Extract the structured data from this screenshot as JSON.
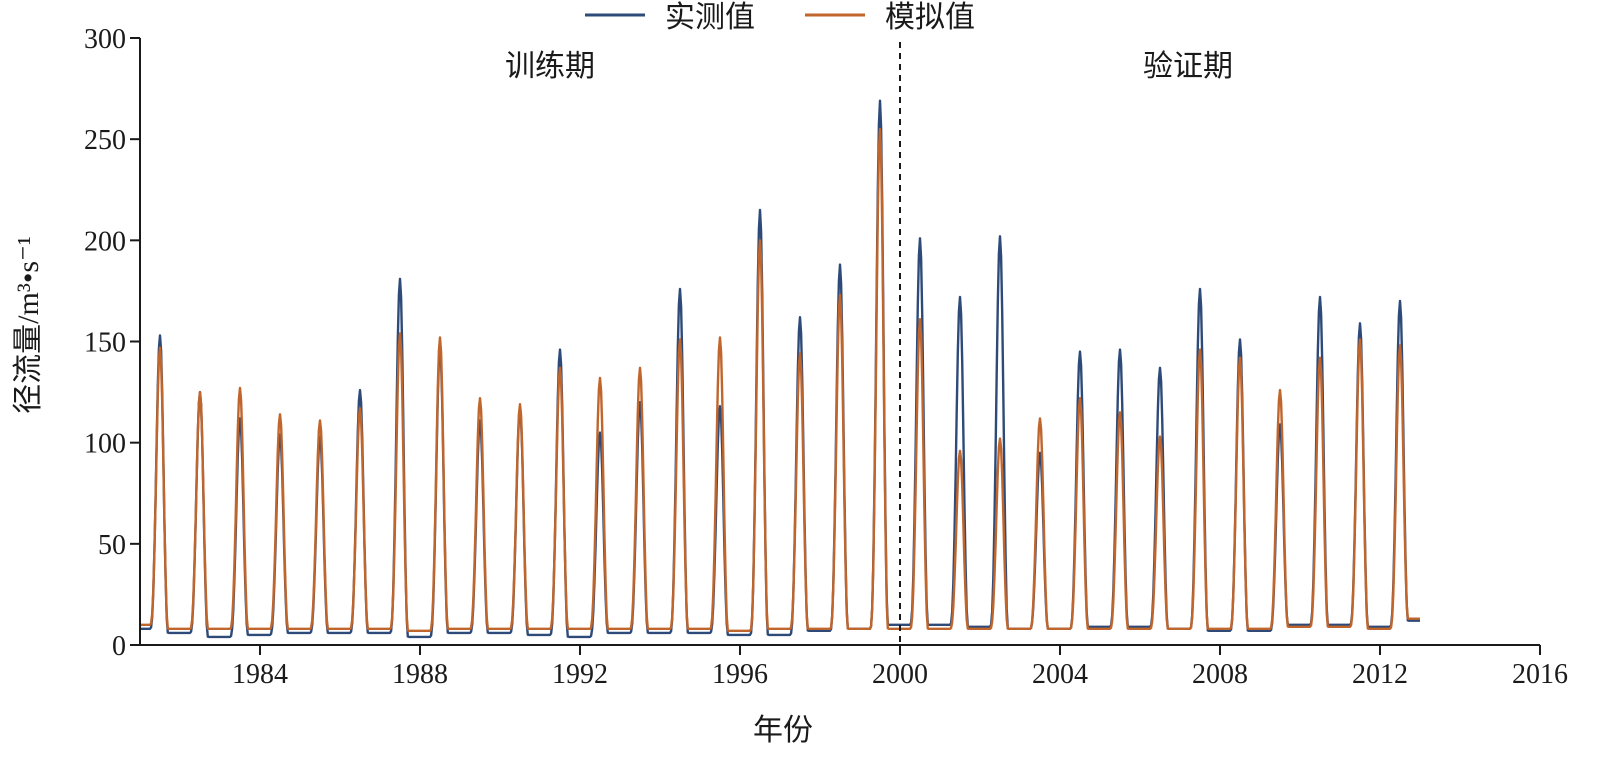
{
  "chart_data": {
    "type": "line",
    "xlabel": "年份",
    "ylabel": "径流量/m³•s⁻¹",
    "xlim": [
      1981.0,
      2016.0
    ],
    "ylim": [
      0,
      300
    ],
    "x_ticks": [
      "1984",
      "1988",
      "1992",
      "1996",
      "2000",
      "2004",
      "2008",
      "2012",
      "2016"
    ],
    "y_ticks": [
      "0",
      "50",
      "100",
      "150",
      "200",
      "250",
      "300"
    ],
    "grid": false,
    "legend_position": "top-center",
    "split_year": 2000.0,
    "periods": {
      "train_label": "训练期",
      "valid_label": "验证期"
    },
    "series": [
      {
        "name": "实测值",
        "color": "#2e4a78",
        "peaks": [
          [
            1981.5,
            153
          ],
          [
            1982.5,
            125
          ],
          [
            1983.5,
            112
          ],
          [
            1984.5,
            104
          ],
          [
            1985.5,
            103
          ],
          [
            1986.5,
            126
          ],
          [
            1987.5,
            181
          ],
          [
            1988.5,
            147
          ],
          [
            1989.5,
            111
          ],
          [
            1990.5,
            117
          ],
          [
            1991.5,
            146
          ],
          [
            1992.5,
            105
          ],
          [
            1993.5,
            120
          ],
          [
            1994.5,
            176
          ],
          [
            1995.5,
            118
          ],
          [
            1996.5,
            215
          ],
          [
            1997.5,
            162
          ],
          [
            1998.5,
            188
          ],
          [
            1999.5,
            269
          ],
          [
            2000.5,
            201
          ],
          [
            2001.5,
            172
          ],
          [
            2002.5,
            202
          ],
          [
            2003.5,
            95
          ],
          [
            2004.5,
            145
          ],
          [
            2005.5,
            146
          ],
          [
            2006.5,
            137
          ],
          [
            2007.5,
            176
          ],
          [
            2008.5,
            151
          ],
          [
            2009.5,
            109
          ],
          [
            2010.5,
            172
          ],
          [
            2011.5,
            159
          ],
          [
            2012.5,
            170
          ]
        ],
        "baselines": [
          8,
          6,
          4,
          5,
          6,
          6,
          6,
          4,
          6,
          6,
          5,
          4,
          6,
          6,
          6,
          5,
          5,
          7,
          8,
          10,
          10,
          9,
          8,
          8,
          9,
          9,
          8,
          7,
          7,
          10,
          10,
          9,
          12
        ]
      },
      {
        "name": "模拟值",
        "color": "#c0652b",
        "peaks": [
          [
            1981.5,
            147
          ],
          [
            1982.5,
            125
          ],
          [
            1983.5,
            127
          ],
          [
            1984.5,
            114
          ],
          [
            1985.5,
            111
          ],
          [
            1986.5,
            117
          ],
          [
            1987.5,
            154
          ],
          [
            1988.5,
            152
          ],
          [
            1989.5,
            122
          ],
          [
            1990.5,
            119
          ],
          [
            1991.5,
            137
          ],
          [
            1992.5,
            132
          ],
          [
            1993.5,
            137
          ],
          [
            1994.5,
            151
          ],
          [
            1995.5,
            152
          ],
          [
            1996.5,
            200
          ],
          [
            1997.5,
            144
          ],
          [
            1998.5,
            173
          ],
          [
            1999.5,
            255
          ],
          [
            2000.5,
            161
          ],
          [
            2001.5,
            96
          ],
          [
            2002.5,
            102
          ],
          [
            2003.5,
            112
          ],
          [
            2004.5,
            122
          ],
          [
            2005.5,
            115
          ],
          [
            2006.5,
            103
          ],
          [
            2007.5,
            146
          ],
          [
            2008.5,
            142
          ],
          [
            2009.5,
            126
          ],
          [
            2010.5,
            142
          ],
          [
            2011.5,
            151
          ],
          [
            2012.5,
            148
          ]
        ],
        "baselines": [
          10,
          8,
          8,
          8,
          8,
          8,
          8,
          7,
          8,
          8,
          8,
          8,
          8,
          8,
          8,
          7,
          8,
          8,
          8,
          8,
          8,
          8,
          8,
          8,
          8,
          8,
          8,
          8,
          8,
          9,
          9,
          8,
          13
        ]
      }
    ]
  }
}
